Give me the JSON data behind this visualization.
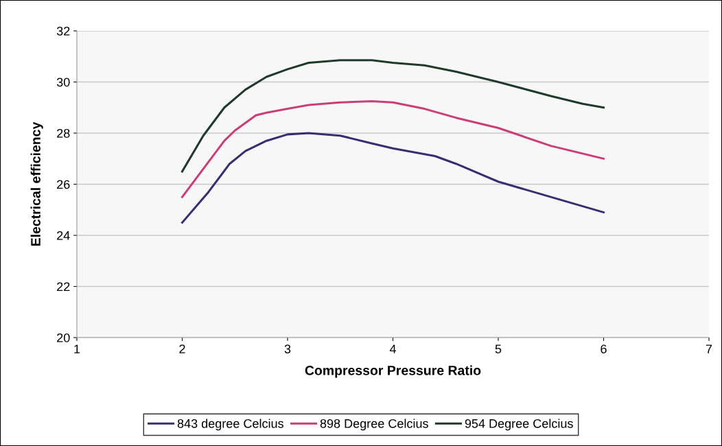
{
  "chart_data": {
    "type": "line",
    "xlabel": "Compressor Pressure Ratio",
    "ylabel": "Electrical efficiency",
    "xlim": [
      1,
      7
    ],
    "xticks": [
      1,
      2,
      3,
      4,
      5,
      6,
      7
    ],
    "ylim": [
      20,
      32
    ],
    "yticks": [
      20,
      22,
      24,
      26,
      28,
      30,
      32
    ],
    "grid": "y",
    "legend": "bottom",
    "marker": "none",
    "line_style": "solid",
    "series": [
      {
        "name": "843 degree Celcius",
        "color": "#3b2c72",
        "x": [
          2,
          2.25,
          2.45,
          2.6,
          2.8,
          3,
          3.2,
          3.5,
          3.8,
          4,
          4.4,
          4.6,
          5,
          5.5,
          6
        ],
        "values": [
          24.5,
          25.7,
          26.8,
          27.3,
          27.7,
          27.95,
          28.0,
          27.9,
          27.6,
          27.4,
          27.1,
          26.8,
          26.1,
          25.5,
          24.9
        ]
      },
      {
        "name": "898 Degree Celcius",
        "color": "#cc3d77",
        "x": [
          2,
          2.2,
          2.4,
          2.5,
          2.7,
          2.8,
          3,
          3.2,
          3.5,
          3.8,
          4,
          4.3,
          4.6,
          5,
          5.5,
          6
        ],
        "values": [
          25.5,
          26.6,
          27.7,
          28.1,
          28.7,
          28.8,
          28.95,
          29.1,
          29.2,
          29.25,
          29.2,
          28.95,
          28.6,
          28.2,
          27.5,
          27.0
        ]
      },
      {
        "name": "954 Degree Celcius",
        "color": "#1f3a2a",
        "x": [
          2,
          2.2,
          2.4,
          2.6,
          2.8,
          3,
          3.2,
          3.5,
          3.8,
          4,
          4.3,
          4.6,
          5,
          5.5,
          5.8,
          6
        ],
        "values": [
          26.5,
          27.9,
          29.0,
          29.7,
          30.2,
          30.5,
          30.75,
          30.85,
          30.85,
          30.75,
          30.65,
          30.4,
          30.0,
          29.45,
          29.15,
          29.0
        ]
      }
    ]
  }
}
